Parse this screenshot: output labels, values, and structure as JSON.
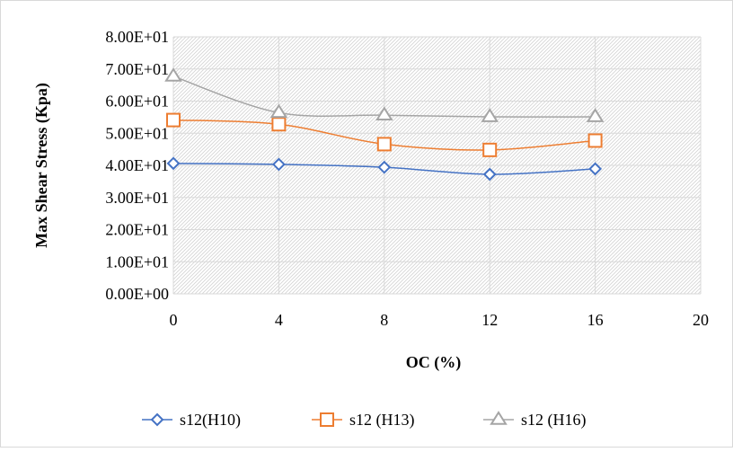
{
  "chart_data": {
    "type": "line",
    "title": "",
    "xlabel": "OC (%)",
    "ylabel": "Max Shear Stress (Kpa)",
    "xlim": [
      0,
      20
    ],
    "ylim": [
      0,
      80
    ],
    "x_ticks": [
      0,
      4,
      8,
      12,
      16,
      20
    ],
    "x_tick_labels": [
      "0",
      "4",
      "8",
      "12",
      "16",
      "20"
    ],
    "y_ticks": [
      0,
      10,
      20,
      30,
      40,
      50,
      60,
      70,
      80
    ],
    "y_tick_labels": [
      "0.00E+00",
      "1.00E+01",
      "2.00E+01",
      "3.00E+01",
      "4.00E+01",
      "5.00E+01",
      "6.00E+01",
      "7.00E+01",
      "8.00E+01"
    ],
    "x": [
      0,
      4,
      8,
      12,
      16
    ],
    "legend_position": "bottom",
    "grid": true,
    "series": [
      {
        "name": "s12(H10)",
        "values": [
          40.6,
          40.3,
          39.4,
          37.2,
          38.9
        ],
        "color": "#4472c4",
        "marker": "diamond"
      },
      {
        "name": "s12 (H13)",
        "values": [
          54.1,
          52.8,
          46.6,
          44.8,
          47.7
        ],
        "color": "#ed7d31",
        "marker": "square"
      },
      {
        "name": "s12 (H16)",
        "values": [
          67.7,
          56.4,
          55.6,
          55.1,
          55.1
        ],
        "color": "#a5a5a5",
        "marker": "triangle"
      }
    ]
  }
}
